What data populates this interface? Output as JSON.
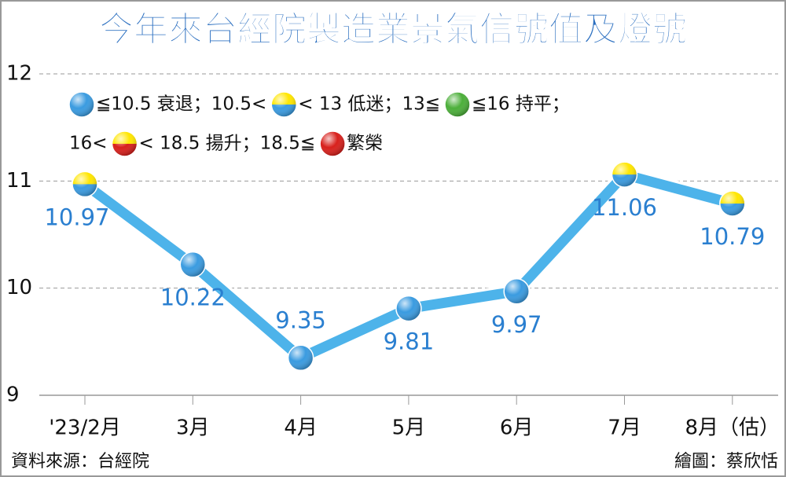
{
  "chart_data": {
    "type": "line",
    "title": "今年來台經院製造業景氣信號值及燈號",
    "categories": [
      "'23/2月",
      "3月",
      "4月",
      "5月",
      "6月",
      "7月",
      "8月（估）"
    ],
    "series": [
      {
        "color": "#4db3ea",
        "values": [
          10.97,
          10.22,
          9.35,
          9.81,
          9.97,
          11.06,
          10.79
        ],
        "point_colors": [
          [
            "#ffe600",
            "#3a9be0"
          ],
          [
            "#3a9be0",
            "#3a9be0"
          ],
          [
            "#3a9be0",
            "#3a9be0"
          ],
          [
            "#3a9be0",
            "#3a9be0"
          ],
          [
            "#3a9be0",
            "#3a9be0"
          ],
          [
            "#ffe600",
            "#3a9be0"
          ],
          [
            "#ffe600",
            "#3a9be0"
          ]
        ]
      }
    ],
    "ylim": [
      9,
      12
    ],
    "yticks": [
      9,
      10,
      11,
      12
    ],
    "grid": true,
    "legend_lines": [
      [
        {
          "ball": [
            "#3a9be0",
            "#3a9be0"
          ]
        },
        {
          "text": "≦10.5 衰退；10.5<"
        },
        {
          "ball": [
            "#ffe600",
            "#3a9be0"
          ]
        },
        {
          "text": "< 13 低迷；13≦"
        },
        {
          "ball": [
            "#4caf3a",
            "#4caf3a"
          ]
        },
        {
          "text": "≦16 持平；"
        }
      ],
      [
        {
          "text": "16<"
        },
        {
          "ball": [
            "#ffe600",
            "#d8201c"
          ]
        },
        {
          "text": "< 18.5 揚升；18.5≦"
        },
        {
          "ball": [
            "#d8201c",
            "#d8201c"
          ]
        },
        {
          "text": "繁榮"
        }
      ]
    ],
    "source": "資料來源：台經院",
    "credit": "繪圖：蔡欣恬"
  }
}
